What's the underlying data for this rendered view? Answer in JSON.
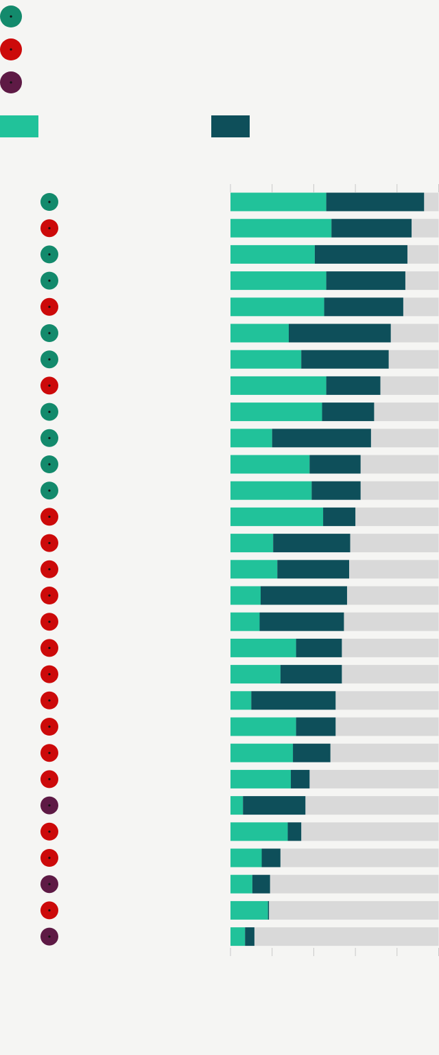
{
  "colors": {
    "background": "#f5f5f3",
    "party_green": "#138a6c",
    "party_red": "#cc0a0a",
    "party_purple": "#5e1a45",
    "series_1": "#21c29a",
    "series_2": "#0e4f5a",
    "remainder": "#d9d9d9",
    "axis_tick": "#c8c8c8",
    "dot_center": "#111111"
  },
  "legend": {
    "party_markers": [
      {
        "color_key": "party_green",
        "icon": "dot-icon"
      },
      {
        "color_key": "party_red",
        "icon": "dot-icon"
      },
      {
        "color_key": "party_purple",
        "icon": "dot-icon"
      }
    ],
    "series_swatches": [
      {
        "color_key": "series_1",
        "label": ""
      },
      {
        "color_key": "series_2",
        "label": ""
      }
    ]
  },
  "chart_data": {
    "type": "bar",
    "orientation": "horizontal",
    "stacked": true,
    "title": "",
    "xlabel": "",
    "ylabel": "",
    "xlim": [
      0,
      100
    ],
    "x_tick_values": [
      0,
      20,
      40,
      60,
      80,
      100
    ],
    "x_tick_labels": [
      "",
      "",
      "",
      "",
      "",
      ""
    ],
    "grid": false,
    "categories": [
      "",
      "",
      "",
      "",
      "",
      "",
      "",
      "",
      "",
      "",
      "",
      "",
      "",
      "",
      "",
      "",
      "",
      "",
      "",
      "",
      "",
      "",
      "",
      "",
      "",
      "",
      "",
      "",
      ""
    ],
    "row_party": [
      "green",
      "red",
      "green",
      "green",
      "red",
      "green",
      "green",
      "red",
      "green",
      "green",
      "green",
      "green",
      "red",
      "red",
      "red",
      "red",
      "red",
      "red",
      "red",
      "red",
      "red",
      "red",
      "red",
      "purple",
      "red",
      "red",
      "purple",
      "red",
      "purple"
    ],
    "series": [
      {
        "values": [
          46,
          48.5,
          40.5,
          46,
          45,
          28,
          34,
          46,
          44,
          20,
          38,
          39,
          44.5,
          20.5,
          22.5,
          14.5,
          14,
          31.5,
          24,
          10,
          31.5,
          30,
          29,
          6,
          27.5,
          15,
          10.5,
          18,
          7
        ]
      },
      {
        "values": [
          47,
          38.5,
          44.5,
          38,
          38,
          49,
          42,
          26,
          25,
          47.5,
          24.5,
          23.5,
          15.5,
          37,
          34.5,
          41.5,
          40.5,
          22,
          29.5,
          40.5,
          19,
          18,
          9,
          30,
          6.5,
          9,
          8.5,
          0.5,
          4.5
        ]
      }
    ]
  }
}
